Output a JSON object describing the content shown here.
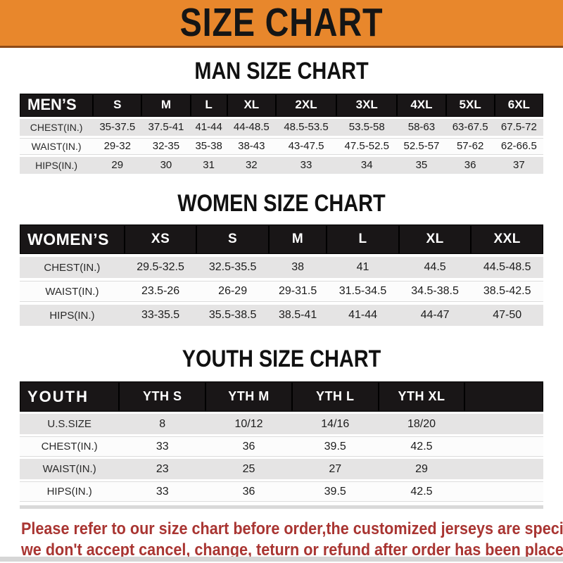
{
  "banner": {
    "title": "SIZE CHART",
    "bg_color": "#E8872C",
    "text_color": "#151515"
  },
  "sections": [
    {
      "heading": "MAN SIZE CHART",
      "table": {
        "header_label": "MEN’S",
        "columns": [
          "S",
          "M",
          "L",
          "XL",
          "2XL",
          "3XL",
          "4XL",
          "5XL",
          "6XL"
        ],
        "rows": [
          {
            "label": "CHEST(IN.)",
            "values": [
              "35-37.5",
              "37.5-41",
              "41-44",
              "44-48.5",
              "48.5-53.5",
              "53.5-58",
              "58-63",
              "63-67.5",
              "67.5-72"
            ]
          },
          {
            "label": "WAIST(IN.)",
            "values": [
              "29-32",
              "32-35",
              "35-38",
              "38-43",
              "43-47.5",
              "47.5-52.5",
              "52.5-57",
              "57-62",
              "62-66.5"
            ]
          },
          {
            "label": "HIPS(IN.)",
            "values": [
              "29",
              "30",
              "31",
              "32",
              "33",
              "34",
              "35",
              "36",
              "37"
            ]
          }
        ]
      }
    },
    {
      "heading": "WOMEN SIZE CHART",
      "table": {
        "header_label": "WOMEN’S",
        "columns": [
          "XS",
          "S",
          "M",
          "L",
          "XL",
          "XXL"
        ],
        "rows": [
          {
            "label": "CHEST(IN.)",
            "values": [
              "29.5-32.5",
              "32.5-35.5",
              "38",
              "41",
              "44.5",
              "44.5-48.5"
            ]
          },
          {
            "label": "WAIST(IN.)",
            "values": [
              "23.5-26",
              "26-29",
              "29-31.5",
              "31.5-34.5",
              "34.5-38.5",
              "38.5-42.5"
            ]
          },
          {
            "label": "HIPS(IN.)",
            "values": [
              "33-35.5",
              "35.5-38.5",
              "38.5-41",
              "41-44",
              "44-47",
              "47-50"
            ]
          }
        ]
      }
    },
    {
      "heading": "YOUTH SIZE CHART",
      "table": {
        "header_label": "YOUTH",
        "columns": [
          "YTH S",
          "YTH M",
          "YTH L",
          "YTH XL"
        ],
        "rows": [
          {
            "label": "U.S.SIZE",
            "values": [
              "8",
              "10/12",
              "14/16",
              "18/20"
            ]
          },
          {
            "label": "CHEST(IN.)",
            "values": [
              "33",
              "36",
              "39.5",
              "42.5"
            ]
          },
          {
            "label": "WAIST(IN.)",
            "values": [
              "23",
              "25",
              "27",
              "29"
            ]
          },
          {
            "label": "HIPS(IN.)",
            "values": [
              "33",
              "36",
              "39.5",
              "42.5"
            ]
          }
        ]
      }
    }
  ],
  "footer": {
    "line1": "Please refer to our size chart before order,the customized jerseys are special products,",
    "line2": "we don't accept cancel, change, teturn or refund after order has been placed!",
    "text_color": "#A93532"
  },
  "colors": {
    "header_bar_bg": "#191617",
    "stripe_gray": "#E5E4E4",
    "row_white": "#FCFCFC",
    "banner_orange": "#E8872C",
    "notice_red": "#A93532"
  }
}
